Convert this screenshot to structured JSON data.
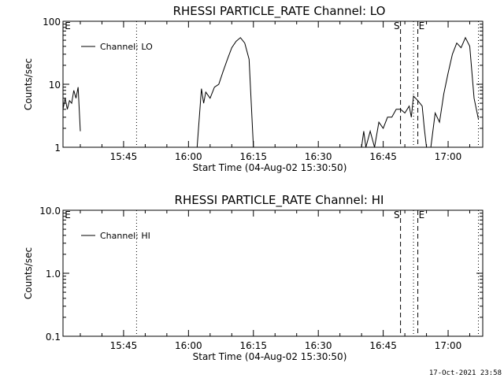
{
  "stamp": "17-Oct-2021 23:58",
  "chart_data": [
    {
      "type": "line",
      "title": "RHESSI PARTICLE_RATE Channel: LO",
      "xlabel": "Start Time (04-Aug-02 15:30:50)",
      "ylabel": "Counts/sec",
      "y_scale": "log",
      "ylim": [
        1,
        100
      ],
      "xlim": [
        "15:31",
        "17:08"
      ],
      "x_ticks": [
        "15:45",
        "16:00",
        "16:15",
        "16:30",
        "16:45",
        "17:00"
      ],
      "y_ticks": [
        "1",
        "10",
        "100"
      ],
      "legend": "top-left",
      "markers": [
        {
          "label": "E",
          "x": "15:31",
          "style": "none"
        },
        {
          "label": "",
          "x": "15:48",
          "style": "dotted"
        },
        {
          "label": "S",
          "x": "16:49",
          "style": "dashed"
        },
        {
          "label": "",
          "x": "16:52",
          "style": "dotted"
        },
        {
          "label": "E",
          "x": "16:53",
          "style": "dashed"
        },
        {
          "label": "",
          "x": "17:07",
          "style": "dotted"
        }
      ],
      "series": [
        {
          "name": "Channel: LO",
          "segments": [
            [
              [
                "15:31",
                4.0
              ],
              [
                "15:31.5",
                6.0
              ],
              [
                "15:32",
                4.0
              ],
              [
                "15:32.5",
                5.5
              ],
              [
                "15:33",
                5.0
              ],
              [
                "15:33.5",
                8.0
              ],
              [
                "15:34",
                6.0
              ],
              [
                "15:34.5",
                9.0
              ],
              [
                "15:35",
                1.8
              ]
            ],
            [
              [
                "16:02",
                1.0
              ],
              [
                "16:03",
                8.5
              ],
              [
                "16:03.5",
                5.0
              ],
              [
                "16:04",
                7.5
              ],
              [
                "16:05",
                6.0
              ],
              [
                "16:06",
                9.0
              ],
              [
                "16:07",
                10.0
              ],
              [
                "16:08",
                16.0
              ],
              [
                "16:09",
                25.0
              ],
              [
                "16:10",
                38.0
              ],
              [
                "16:11",
                48.0
              ],
              [
                "16:12",
                55.0
              ],
              [
                "16:13",
                45.0
              ],
              [
                "16:14",
                25.0
              ],
              [
                "16:15",
                1.0
              ]
            ],
            [
              [
                "16:40",
                1.0
              ],
              [
                "16:40.5",
                1.8
              ],
              [
                "16:41",
                1.0
              ],
              [
                "16:42",
                1.8
              ],
              [
                "16:43",
                1.0
              ],
              [
                "16:44",
                2.5
              ],
              [
                "16:45",
                2.0
              ],
              [
                "16:46",
                3.0
              ],
              [
                "16:47",
                3.0
              ],
              [
                "16:48",
                4.0
              ],
              [
                "16:49",
                4.0
              ],
              [
                "16:50",
                3.5
              ],
              [
                "16:51",
                4.5
              ],
              [
                "16:51.5",
                3.0
              ],
              [
                "16:52",
                6.5
              ],
              [
                "16:53",
                5.5
              ],
              [
                "16:54",
                4.5
              ],
              [
                "16:54.5",
                2.0
              ],
              [
                "16:55",
                1.0
              ]
            ],
            [
              [
                "16:56",
                1.0
              ],
              [
                "16:57",
                3.5
              ],
              [
                "16:58",
                2.5
              ],
              [
                "16:59",
                7.0
              ],
              [
                "17:00",
                15.0
              ],
              [
                "17:01",
                30.0
              ],
              [
                "17:02",
                45.0
              ],
              [
                "17:03",
                38.0
              ],
              [
                "17:04",
                55.0
              ],
              [
                "17:05",
                40.0
              ],
              [
                "17:06",
                6.0
              ],
              [
                "17:07",
                2.8
              ]
            ]
          ]
        }
      ]
    },
    {
      "type": "line",
      "title": "RHESSI PARTICLE_RATE Channel: HI",
      "xlabel": "Start Time (04-Aug-02 15:30:50)",
      "ylabel": "Counts/sec",
      "y_scale": "log",
      "ylim": [
        0.1,
        10.0
      ],
      "xlim": [
        "15:31",
        "17:08"
      ],
      "x_ticks": [
        "15:45",
        "16:00",
        "16:15",
        "16:30",
        "16:45",
        "17:00"
      ],
      "y_ticks": [
        "0.1",
        "1.0",
        "10.0"
      ],
      "legend": "top-left",
      "markers": [
        {
          "label": "E",
          "x": "15:31",
          "style": "none"
        },
        {
          "label": "",
          "x": "15:48",
          "style": "dotted"
        },
        {
          "label": "S",
          "x": "16:49",
          "style": "dashed"
        },
        {
          "label": "",
          "x": "16:52",
          "style": "dotted"
        },
        {
          "label": "E",
          "x": "16:53",
          "style": "dashed"
        },
        {
          "label": "",
          "x": "17:07",
          "style": "dotted"
        }
      ],
      "series": [
        {
          "name": "Channel: HI",
          "segments": []
        }
      ]
    }
  ]
}
